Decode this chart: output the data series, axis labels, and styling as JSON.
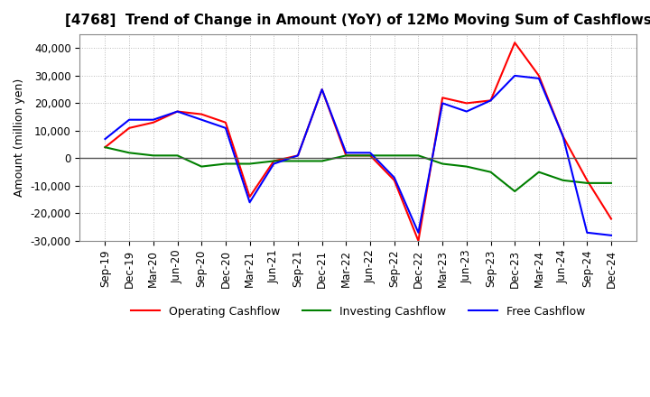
{
  "title": "[4768]  Trend of Change in Amount (YoY) of 12Mo Moving Sum of Cashflows",
  "ylabel": "Amount (million yen)",
  "title_fontsize": 11,
  "label_fontsize": 9,
  "tick_fontsize": 8.5,
  "ylim": [
    -30000,
    45000
  ],
  "yticks": [
    -30000,
    -20000,
    -10000,
    0,
    10000,
    20000,
    30000,
    40000
  ],
  "x_labels": [
    "Sep-19",
    "Dec-19",
    "Mar-20",
    "Jun-20",
    "Sep-20",
    "Dec-20",
    "Mar-21",
    "Jun-21",
    "Sep-21",
    "Dec-21",
    "Mar-22",
    "Jun-22",
    "Sep-22",
    "Dec-22",
    "Mar-23",
    "Jun-23",
    "Sep-23",
    "Dec-23",
    "Mar-24",
    "Jun-24",
    "Sep-24",
    "Dec-24"
  ],
  "operating_cashflow": [
    4000,
    11000,
    13000,
    17000,
    16000,
    13000,
    -14000,
    -1000,
    1000,
    25000,
    1000,
    1000,
    -8000,
    -30000,
    22000,
    20000,
    21000,
    42000,
    30000,
    8000,
    -8000,
    -22000
  ],
  "investing_cashflow": [
    4000,
    2000,
    1000,
    1000,
    -3000,
    -2000,
    -2000,
    -1000,
    -1000,
    -1000,
    1000,
    1000,
    1000,
    1000,
    -2000,
    -3000,
    -5000,
    -12000,
    -5000,
    -8000,
    -9000,
    -9000
  ],
  "free_cashflow": [
    7000,
    14000,
    14000,
    17000,
    14000,
    11000,
    -16000,
    -2000,
    1000,
    25000,
    2000,
    2000,
    -7000,
    -27000,
    20000,
    17000,
    21000,
    30000,
    29000,
    8000,
    -27000,
    -28000
  ],
  "operating_color": "#ff0000",
  "investing_color": "#008000",
  "free_color": "#0000ff",
  "grid_color": "#bbbbbb",
  "grid_linestyle": "dotted",
  "zero_line_color": "#555555",
  "background_color": "#ffffff",
  "legend_fontsize": 9
}
